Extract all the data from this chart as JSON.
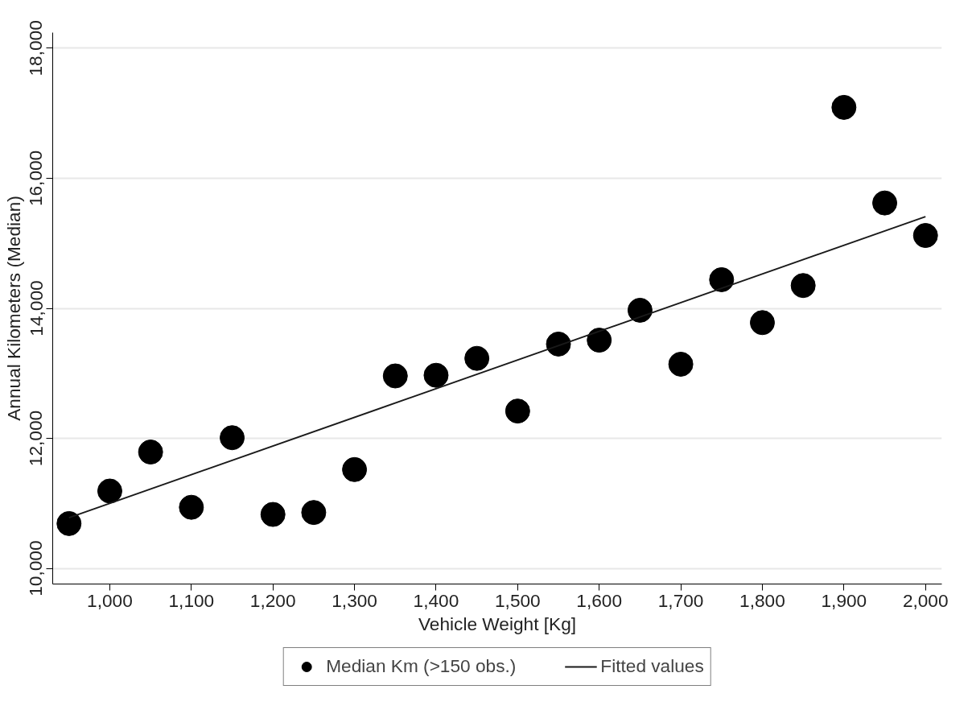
{
  "chart_data": {
    "type": "scatter",
    "xlabel": "Vehicle Weight [Kg]",
    "ylabel": "Annual Kilometers (Median)",
    "x": [
      950,
      1000,
      1050,
      1100,
      1150,
      1200,
      1250,
      1300,
      1350,
      1400,
      1450,
      1500,
      1550,
      1600,
      1650,
      1700,
      1750,
      1800,
      1850,
      1900,
      1950,
      2000
    ],
    "series": [
      {
        "name": "Median Km (>150 obs.)",
        "marker": "circle",
        "color": "#000000",
        "values": [
          10690,
          11190,
          11790,
          10940,
          12010,
          10830,
          10860,
          11520,
          12960,
          12970,
          13230,
          12420,
          13450,
          13510,
          13970,
          13140,
          14440,
          13780,
          14350,
          17090,
          15620,
          15120
        ]
      },
      {
        "name": "Fitted values",
        "type": "line",
        "marker": "none",
        "color": "#1a1a1a",
        "x": [
          950,
          2000
        ],
        "values": [
          10780,
          15410
        ]
      }
    ],
    "line_style": "solid",
    "xlim": [
      930,
      2020
    ],
    "ylim": [
      9760,
      18240
    ],
    "xticks": [
      {
        "value": 1000,
        "label": "1,000"
      },
      {
        "value": 1100,
        "label": "1,100"
      },
      {
        "value": 1200,
        "label": "1,200"
      },
      {
        "value": 1300,
        "label": "1,300"
      },
      {
        "value": 1400,
        "label": "1,400"
      },
      {
        "value": 1500,
        "label": "1,500"
      },
      {
        "value": 1600,
        "label": "1,600"
      },
      {
        "value": 1700,
        "label": "1,700"
      },
      {
        "value": 1800,
        "label": "1,800"
      },
      {
        "value": 1900,
        "label": "1,900"
      },
      {
        "value": 2000,
        "label": "2,000"
      }
    ],
    "yticks": [
      {
        "value": 10000,
        "label": "10,000"
      },
      {
        "value": 12000,
        "label": "12,000"
      },
      {
        "value": 14000,
        "label": "14,000"
      },
      {
        "value": 16000,
        "label": "16,000"
      },
      {
        "value": 18000,
        "label": "18,000"
      }
    ],
    "grid": "y",
    "legend": "bottom"
  }
}
